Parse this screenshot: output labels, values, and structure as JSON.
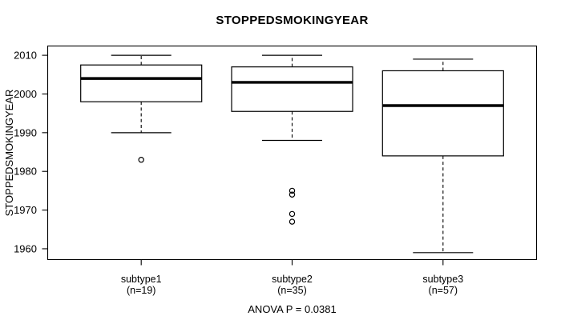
{
  "chart": {
    "title": "STOPPEDSMOKINGYEAR",
    "footer_note": "ANOVA P = 0.0381"
  },
  "chart_data": {
    "type": "boxplot",
    "title": "STOPPEDSMOKINGYEAR",
    "ylabel": "STOPPEDSMOKINGYEAR",
    "xlabel": "",
    "annotation": "ANOVA P = 0.0381",
    "categories": [
      "subtype1",
      "subtype2",
      "subtype3"
    ],
    "category_sublabels": [
      "(n=19)",
      "(n=35)",
      "(n=57)"
    ],
    "sample_sizes": [
      19,
      35,
      57
    ],
    "y_ticks": [
      1960,
      1970,
      1980,
      1990,
      2000,
      2010
    ],
    "ylim": [
      1957.2,
      2012.4
    ],
    "grid": false,
    "legend": "none",
    "series": [
      {
        "name": "subtype1",
        "n": 19,
        "whisker_low": 1990,
        "q1": 1998,
        "median": 2004,
        "q3": 2007.5,
        "whisker_high": 2010,
        "outliers": [
          1983
        ]
      },
      {
        "name": "subtype2",
        "n": 35,
        "whisker_low": 1988,
        "q1": 1995.5,
        "median": 2003,
        "q3": 2007,
        "whisker_high": 2010,
        "outliers": [
          1975,
          1974,
          1969,
          1967
        ]
      },
      {
        "name": "subtype3",
        "n": 57,
        "whisker_low": 1959,
        "q1": 1984,
        "median": 1997,
        "q3": 2006,
        "whisker_high": 2009,
        "outliers": []
      }
    ],
    "colors": {
      "box_border": "#000000",
      "box_fill": "#ffffff",
      "median": "#000000",
      "background": "#ffffff",
      "text": "#000000"
    }
  }
}
